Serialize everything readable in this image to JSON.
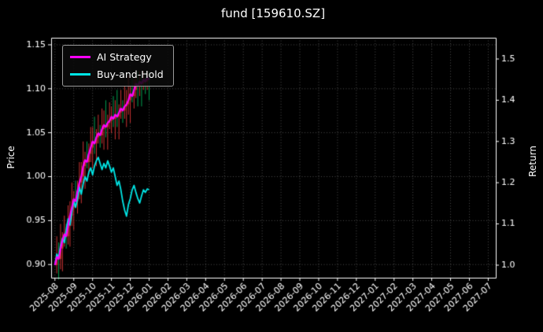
{
  "title": "fund [159610.SZ]",
  "axes": {
    "left_label": "Price",
    "right_label": "Return",
    "left_ticks": [
      "0.90",
      "0.95",
      "1.00",
      "1.05",
      "1.10",
      "1.15"
    ],
    "left_tick_values": [
      0.9,
      0.95,
      1.0,
      1.05,
      1.1,
      1.15
    ],
    "right_ticks": [
      "1.0",
      "1.1",
      "1.2",
      "1.3",
      "1.4",
      "1.5"
    ],
    "right_tick_values": [
      1.0,
      1.1,
      1.2,
      1.3,
      1.4,
      1.5
    ]
  },
  "legend": {
    "position": "upper-left",
    "items": [
      {
        "label": "AI Strategy",
        "color": "#ff00ff"
      },
      {
        "label": "Buy-and-Hold",
        "color": "#00e5e5"
      }
    ]
  },
  "chart_data": {
    "type": "line",
    "subtype": "equity-curves-with-candlesticks",
    "title": "fund [159610.SZ]",
    "xlabel": "",
    "ylabel_left": "Price",
    "ylabel_right": "Return",
    "grid": "dotted",
    "background": "#000000",
    "x_unit": "months since 2025-08",
    "x_range": [
      -0.2,
      23.4
    ],
    "x_tick_labels": [
      "2025-08",
      "2025-09",
      "2025-10",
      "2025-11",
      "2025-12",
      "2026-01",
      "2026-02",
      "2026-03",
      "2026-04",
      "2026-05",
      "2026-06",
      "2026-07",
      "2026-08",
      "2026-09",
      "2026-10",
      "2026-11",
      "2026-12",
      "2027-01",
      "2027-02",
      "2027-03",
      "2027-04",
      "2027-05",
      "2027-06",
      "2027-07"
    ],
    "left_axis_range": [
      0.885,
      1.158
    ],
    "right_axis_range": [
      0.9695,
      1.5515
    ],
    "series": [
      {
        "name": "Buy-and-Hold",
        "type": "line",
        "axis": "left",
        "color": "#00e5e5",
        "x_start": 0.0,
        "x_step": 0.1,
        "values": [
          0.9,
          0.912,
          0.908,
          0.922,
          0.93,
          0.925,
          0.94,
          0.952,
          0.945,
          0.96,
          0.972,
          0.965,
          0.975,
          0.988,
          0.98,
          0.992,
          1.0,
          0.995,
          1.005,
          1.01,
          1.002,
          1.012,
          1.018,
          1.022,
          1.015,
          1.008,
          1.015,
          1.01,
          1.018,
          1.012,
          1.005,
          1.01,
          1.0,
          0.99,
          0.995,
          0.985,
          0.972,
          0.962,
          0.955,
          0.968,
          0.975,
          0.985,
          0.99,
          0.982,
          0.975,
          0.97,
          0.978,
          0.985,
          0.982,
          0.986,
          0.985
        ]
      },
      {
        "name": "AI Strategy",
        "type": "line",
        "axis": "right",
        "color": "#ff00ff",
        "x_start": 0.0,
        "x_step": 0.1,
        "values": [
          1.0,
          1.02,
          1.015,
          1.04,
          1.06,
          1.075,
          1.07,
          1.095,
          1.12,
          1.14,
          1.16,
          1.155,
          1.18,
          1.2,
          1.215,
          1.24,
          1.255,
          1.25,
          1.27,
          1.285,
          1.3,
          1.295,
          1.31,
          1.32,
          1.315,
          1.33,
          1.34,
          1.335,
          1.345,
          1.35,
          1.36,
          1.355,
          1.365,
          1.36,
          1.37,
          1.38,
          1.375,
          1.385,
          1.39,
          1.4,
          1.415,
          1.41,
          1.425,
          1.44,
          1.435,
          1.445,
          1.44,
          1.45,
          1.445,
          1.455,
          1.45
        ]
      },
      {
        "name": "fund-candles",
        "type": "candlestick",
        "axis": "right",
        "up_color": "#cc3333",
        "down_color": "#00a050",
        "candle_keys": [
          "x_month",
          "open",
          "high",
          "low",
          "close"
        ],
        "candles": [
          [
            0.1,
            1.0,
            1.07,
            0.98,
            1.02
          ],
          [
            0.2,
            1.02,
            1.055,
            0.965,
            1.015
          ],
          [
            0.3,
            1.015,
            1.1,
            0.99,
            1.04
          ],
          [
            0.4,
            1.04,
            1.08,
            0.985,
            1.06
          ],
          [
            0.5,
            1.06,
            1.12,
            1.045,
            1.075
          ],
          [
            0.6,
            1.075,
            1.1,
            1.04,
            1.07
          ],
          [
            0.7,
            1.07,
            1.145,
            1.05,
            1.095
          ],
          [
            0.8,
            1.095,
            1.155,
            1.045,
            1.12
          ],
          [
            0.9,
            1.12,
            1.2,
            1.095,
            1.14
          ],
          [
            1.0,
            1.14,
            1.18,
            1.085,
            1.16
          ],
          [
            1.1,
            1.16,
            1.205,
            1.14,
            1.155
          ],
          [
            1.2,
            1.155,
            1.205,
            1.125,
            1.18
          ],
          [
            1.3,
            1.18,
            1.25,
            1.16,
            1.2
          ],
          [
            1.4,
            1.2,
            1.25,
            1.15,
            1.215
          ],
          [
            1.5,
            1.215,
            1.3,
            1.19,
            1.24
          ],
          [
            1.6,
            1.24,
            1.275,
            1.185,
            1.255
          ],
          [
            1.7,
            1.255,
            1.3,
            1.235,
            1.25
          ],
          [
            1.8,
            1.25,
            1.295,
            1.22,
            1.27
          ],
          [
            1.9,
            1.27,
            1.335,
            1.25,
            1.285
          ],
          [
            2.0,
            1.285,
            1.335,
            1.235,
            1.3
          ],
          [
            2.1,
            1.3,
            1.36,
            1.27,
            1.295
          ],
          [
            2.2,
            1.295,
            1.33,
            1.24,
            1.31
          ],
          [
            2.3,
            1.31,
            1.365,
            1.295,
            1.32
          ],
          [
            2.4,
            1.32,
            1.34,
            1.285,
            1.315
          ],
          [
            2.5,
            1.315,
            1.38,
            1.295,
            1.33
          ],
          [
            2.6,
            1.33,
            1.375,
            1.28,
            1.34
          ],
          [
            2.7,
            1.34,
            1.4,
            1.31,
            1.335
          ],
          [
            2.8,
            1.335,
            1.365,
            1.28,
            1.345
          ],
          [
            2.9,
            1.345,
            1.395,
            1.33,
            1.35
          ],
          [
            3.0,
            1.35,
            1.385,
            1.32,
            1.36
          ],
          [
            3.1,
            1.36,
            1.41,
            1.335,
            1.355
          ],
          [
            3.2,
            1.355,
            1.4,
            1.305,
            1.365
          ],
          [
            3.3,
            1.365,
            1.425,
            1.335,
            1.36
          ],
          [
            3.4,
            1.36,
            1.39,
            1.305,
            1.37
          ],
          [
            3.5,
            1.37,
            1.425,
            1.355,
            1.38
          ],
          [
            3.6,
            1.38,
            1.4,
            1.345,
            1.375
          ],
          [
            3.7,
            1.375,
            1.435,
            1.355,
            1.385
          ],
          [
            3.8,
            1.385,
            1.425,
            1.335,
            1.39
          ],
          [
            3.9,
            1.39,
            1.46,
            1.365,
            1.4
          ],
          [
            4.0,
            1.4,
            1.435,
            1.345,
            1.415
          ],
          [
            4.1,
            1.415,
            1.455,
            1.395,
            1.41
          ],
          [
            4.2,
            1.41,
            1.45,
            1.38,
            1.425
          ],
          [
            4.3,
            1.425,
            1.47,
            1.405,
            1.44
          ],
          [
            4.4,
            1.44,
            1.47,
            1.385,
            1.435
          ],
          [
            4.5,
            1.435,
            1.47,
            1.41,
            1.445
          ],
          [
            4.6,
            1.445,
            1.46,
            1.385,
            1.44
          ],
          [
            4.7,
            1.44,
            1.47,
            1.425,
            1.45
          ],
          [
            4.8,
            1.45,
            1.47,
            1.415,
            1.445
          ],
          [
            4.9,
            1.445,
            1.47,
            1.425,
            1.455
          ],
          [
            5.0,
            1.455,
            1.47,
            1.4,
            1.45
          ]
        ]
      }
    ]
  }
}
